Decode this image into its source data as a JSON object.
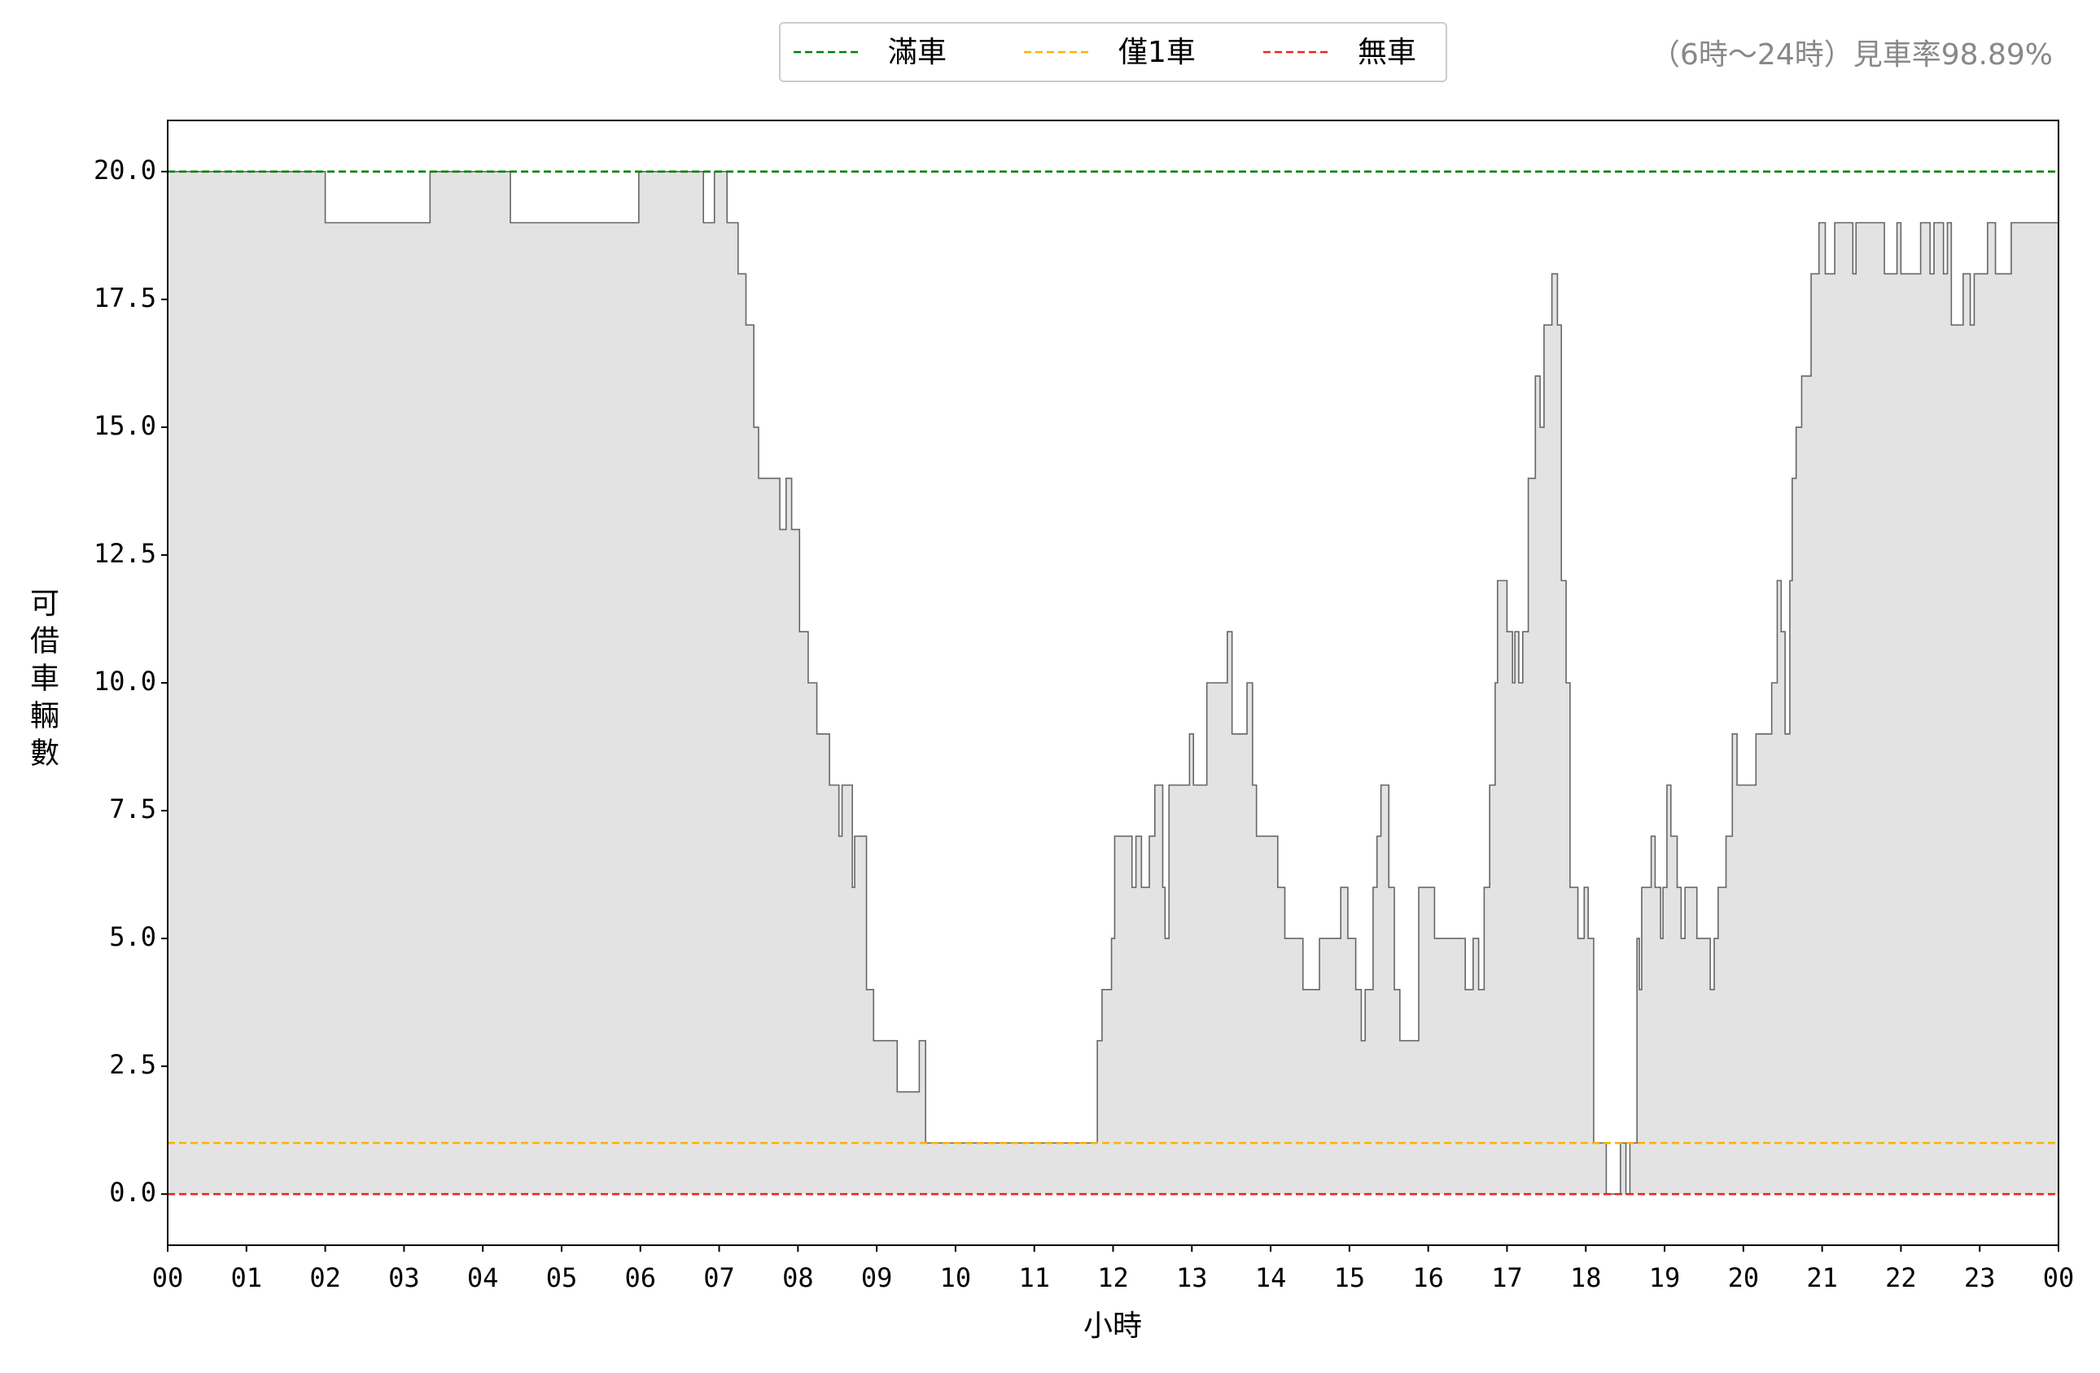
{
  "chart_data": {
    "type": "line",
    "step": "post",
    "annotation": "（6時～24時）見車率98.89%",
    "xlabel": "小時",
    "ylabel": "可借車輛數",
    "xlim": [
      0,
      24
    ],
    "ylim": [
      -1,
      21
    ],
    "xticks": [
      {
        "value": 0,
        "label": "00"
      },
      {
        "value": 1,
        "label": "01"
      },
      {
        "value": 2,
        "label": "02"
      },
      {
        "value": 3,
        "label": "03"
      },
      {
        "value": 4,
        "label": "04"
      },
      {
        "value": 5,
        "label": "05"
      },
      {
        "value": 6,
        "label": "06"
      },
      {
        "value": 7,
        "label": "07"
      },
      {
        "value": 8,
        "label": "08"
      },
      {
        "value": 9,
        "label": "09"
      },
      {
        "value": 10,
        "label": "10"
      },
      {
        "value": 11,
        "label": "11"
      },
      {
        "value": 12,
        "label": "12"
      },
      {
        "value": 13,
        "label": "13"
      },
      {
        "value": 14,
        "label": "14"
      },
      {
        "value": 15,
        "label": "15"
      },
      {
        "value": 16,
        "label": "16"
      },
      {
        "value": 17,
        "label": "17"
      },
      {
        "value": 18,
        "label": "18"
      },
      {
        "value": 19,
        "label": "19"
      },
      {
        "value": 20,
        "label": "20"
      },
      {
        "value": 21,
        "label": "21"
      },
      {
        "value": 22,
        "label": "22"
      },
      {
        "value": 23,
        "label": "23"
      },
      {
        "value": 24,
        "label": "00"
      }
    ],
    "yticks": [
      {
        "value": 0,
        "label": "0.0"
      },
      2.5,
      {
        "value": 5,
        "label": "5.0"
      },
      7.5,
      {
        "value": 10,
        "label": "10.0"
      },
      12.5,
      {
        "value": 15,
        "label": "15.0"
      },
      17.5,
      {
        "value": 20,
        "label": "20.0"
      }
    ],
    "legend": "upper center",
    "hlines": [
      {
        "name": "滿車",
        "value": 20,
        "color": "#008000"
      },
      {
        "name": "僅1車",
        "value": 1,
        "color": "#ffb000"
      },
      {
        "name": "無車",
        "value": 0,
        "color": "#e8281e"
      }
    ],
    "series": [
      {
        "color": "#666666",
        "fill": "#e3e3e3",
        "x": [
          0,
          2.0,
          3.33,
          4.35,
          5.98,
          6.8,
          6.94,
          7.1,
          7.24,
          7.34,
          7.44,
          7.5,
          7.77,
          7.85,
          7.92,
          8.02,
          8.13,
          8.24,
          8.4,
          8.52,
          8.56,
          8.69,
          8.72,
          8.87,
          8.96,
          9.26,
          9.54,
          9.62,
          11.8,
          11.86,
          11.98,
          12.02,
          12.24,
          12.29,
          12.36,
          12.46,
          12.53,
          12.63,
          12.66,
          12.71,
          12.97,
          13.02,
          13.19,
          13.45,
          13.51,
          13.7,
          13.77,
          13.82,
          14.09,
          14.18,
          14.41,
          14.62,
          14.89,
          14.98,
          15.08,
          15.15,
          15.2,
          15.3,
          15.35,
          15.4,
          15.5,
          15.57,
          15.64,
          15.88,
          16.08,
          16.47,
          16.57,
          16.64,
          16.71,
          16.78,
          16.85,
          16.88,
          17.0,
          17.07,
          17.1,
          17.15,
          17.2,
          17.27,
          17.36,
          17.42,
          17.47,
          17.57,
          17.64,
          17.69,
          17.75,
          17.8,
          17.9,
          17.98,
          18.03,
          18.1,
          18.26,
          18.44,
          18.51,
          18.56,
          18.65,
          18.68,
          18.71,
          18.83,
          18.88,
          18.95,
          18.98,
          19.03,
          19.08,
          19.16,
          19.21,
          19.26,
          19.41,
          19.58,
          19.63,
          19.68,
          19.78,
          19.86,
          19.92,
          20.16,
          20.36,
          20.43,
          20.48,
          20.53,
          20.59,
          20.62,
          20.67,
          20.74,
          20.86,
          20.96,
          21.04,
          21.16,
          21.39,
          21.43,
          21.79,
          21.95,
          22.0,
          22.25,
          22.37,
          22.42,
          22.54,
          22.59,
          22.64,
          22.79,
          22.88,
          22.93,
          23.1,
          23.2,
          23.4,
          24
        ],
        "values": [
          20,
          19,
          20,
          19,
          20,
          19,
          20,
          19,
          18,
          17,
          15,
          14,
          13,
          14,
          13,
          11,
          10,
          9,
          8,
          7,
          8,
          6,
          7,
          4,
          3,
          2,
          3,
          1,
          3,
          4,
          5,
          7,
          6,
          7,
          6,
          7,
          8,
          6,
          5,
          8,
          9,
          8,
          10,
          11,
          9,
          10,
          8,
          7,
          6,
          5,
          4,
          5,
          6,
          5,
          4,
          3,
          4,
          6,
          7,
          8,
          6,
          4,
          3,
          6,
          5,
          4,
          5,
          4,
          6,
          8,
          10,
          12,
          11,
          10,
          11,
          10,
          11,
          14,
          16,
          15,
          17,
          18,
          17,
          12,
          10,
          6,
          5,
          6,
          5,
          1,
          0,
          1,
          0,
          1,
          5,
          4,
          6,
          7,
          6,
          5,
          6,
          8,
          7,
          6,
          5,
          6,
          5,
          4,
          5,
          6,
          7,
          9,
          8,
          9,
          10,
          12,
          11,
          9,
          12,
          14,
          15,
          16,
          18,
          19,
          18,
          19,
          18,
          19,
          18,
          19,
          18,
          19,
          18,
          19,
          18,
          19,
          17,
          18,
          17,
          18,
          19,
          18,
          19,
          19
        ]
      }
    ]
  }
}
